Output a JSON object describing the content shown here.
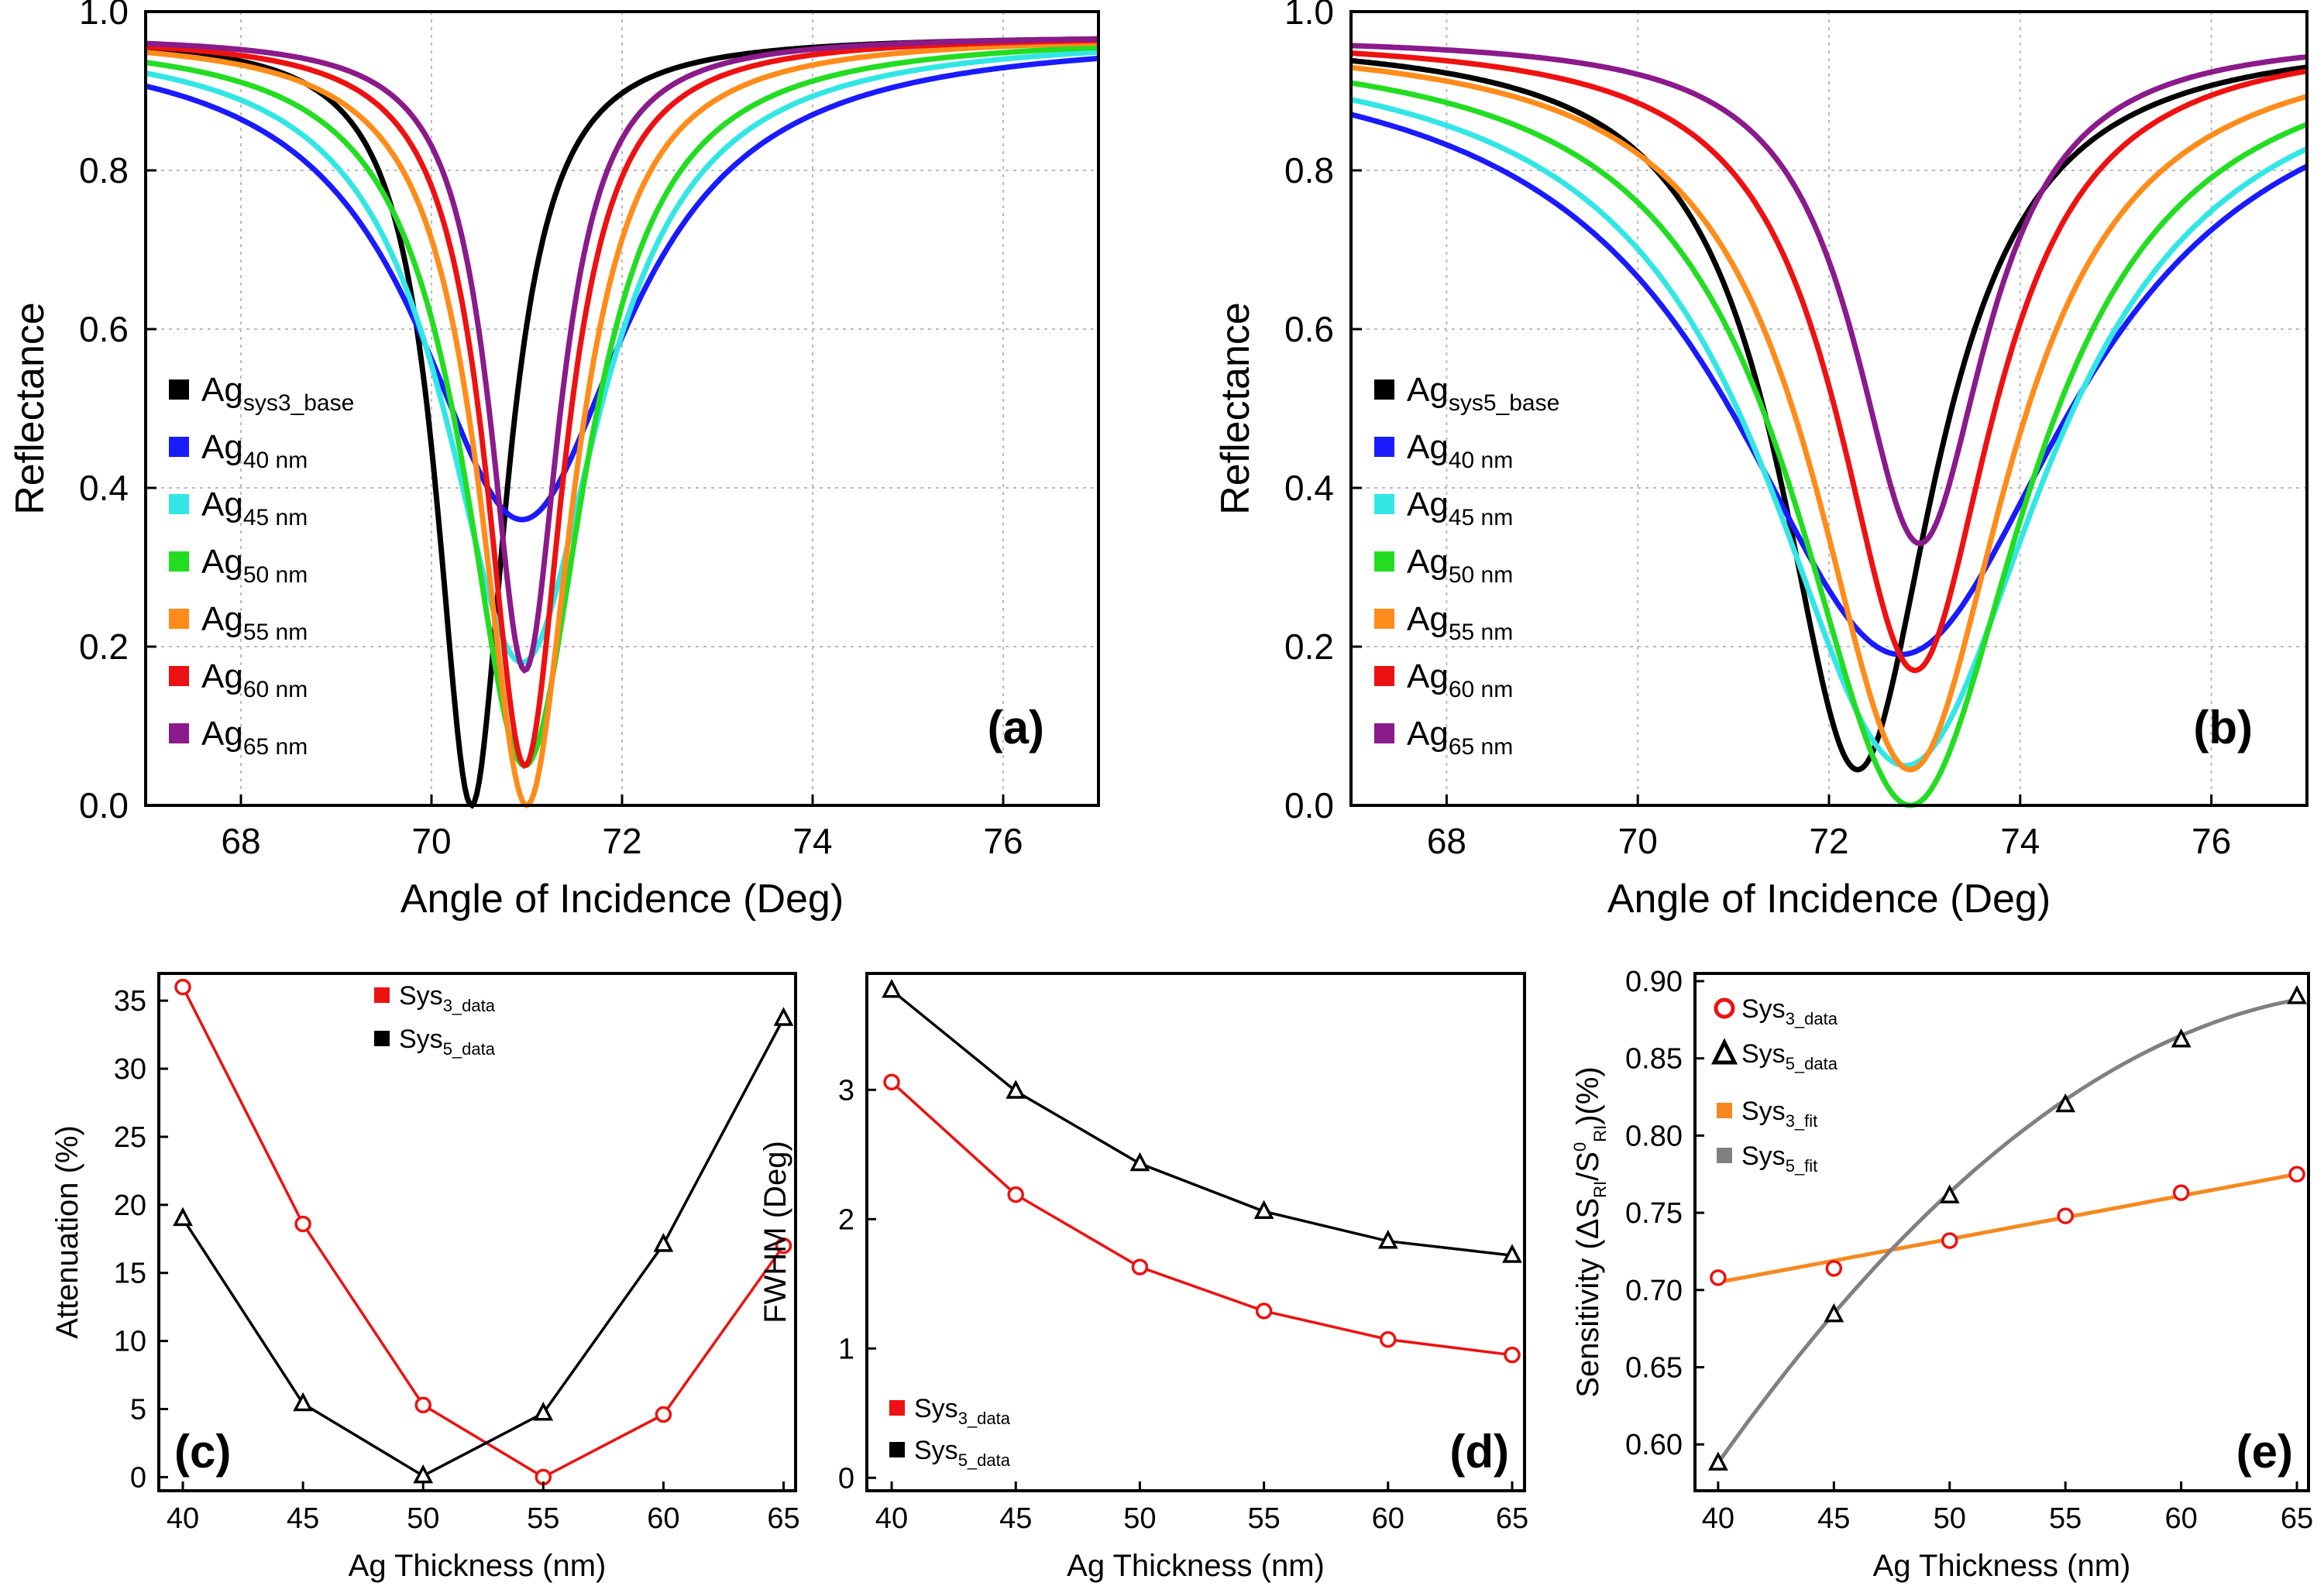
{
  "chart_data": [
    {
      "panel": "a",
      "type": "line",
      "label": "(a)",
      "xlabel": "Angle of Incidence (Deg)",
      "ylabel": "Reflectance",
      "xlim": [
        67,
        77
      ],
      "ylim": [
        0,
        1.0
      ],
      "xticks": [
        "68",
        "70",
        "72",
        "74",
        "76"
      ],
      "yticks": [
        "0.0",
        "0.2",
        "0.4",
        "0.6",
        "0.8",
        "1.0"
      ],
      "grid": true,
      "legend_position": "left-middle",
      "series": [
        {
          "name": "Ag",
          "sub": "sys3_base",
          "color": "#000000",
          "min_angle": 70.42,
          "min_R": 0.0,
          "half_width": 0.45
        },
        {
          "name": "Ag",
          "sub": "40 nm",
          "color": "#1a1aff",
          "min_angle": 70.95,
          "min_R": 0.36,
          "half_width": 1.35
        },
        {
          "name": "Ag",
          "sub": "45 nm",
          "color": "#33e6e6",
          "min_angle": 70.95,
          "min_R": 0.18,
          "half_width": 1.0
        },
        {
          "name": "Ag",
          "sub": "50 nm",
          "color": "#22dd22",
          "min_angle": 70.98,
          "min_R": 0.05,
          "half_width": 0.78
        },
        {
          "name": "Ag",
          "sub": "55 nm",
          "color": "#ff8c1a",
          "min_angle": 71.0,
          "min_R": 0.0,
          "half_width": 0.6
        },
        {
          "name": "Ag",
          "sub": "60 nm",
          "color": "#ee1111",
          "min_angle": 70.98,
          "min_R": 0.05,
          "half_width": 0.5
        },
        {
          "name": "Ag",
          "sub": "65 nm",
          "color": "#8b1a8b",
          "min_angle": 70.98,
          "min_R": 0.17,
          "half_width": 0.45
        }
      ]
    },
    {
      "panel": "b",
      "type": "line",
      "label": "(b)",
      "xlabel": "Angle of Incidence (Deg)",
      "ylabel": "Reflectance",
      "xlim": [
        67,
        77
      ],
      "ylim": [
        0,
        1.0
      ],
      "xticks": [
        "68",
        "70",
        "72",
        "74",
        "76"
      ],
      "yticks": [
        "0.0",
        "0.2",
        "0.4",
        "0.6",
        "0.8",
        "1.0"
      ],
      "grid": true,
      "legend_position": "left-middle",
      "series": [
        {
          "name": "Ag",
          "sub": "sys5_base",
          "color": "#000000",
          "min_angle": 72.3,
          "min_R": 0.045,
          "half_width": 1.0
        },
        {
          "name": "Ag",
          "sub": "40 nm",
          "color": "#1a1aff",
          "min_angle": 72.75,
          "min_R": 0.19,
          "half_width": 2.2
        },
        {
          "name": "Ag",
          "sub": "45 nm",
          "color": "#33e6e6",
          "min_angle": 72.8,
          "min_R": 0.05,
          "half_width": 1.8
        },
        {
          "name": "Ag",
          "sub": "50 nm",
          "color": "#22dd22",
          "min_angle": 72.85,
          "min_R": 0.0,
          "half_width": 1.5
        },
        {
          "name": "Ag",
          "sub": "55 nm",
          "color": "#ff8c1a",
          "min_angle": 72.85,
          "min_R": 0.045,
          "half_width": 1.25
        },
        {
          "name": "Ag",
          "sub": "60 nm",
          "color": "#ee1111",
          "min_angle": 72.9,
          "min_R": 0.17,
          "half_width": 1.0
        },
        {
          "name": "Ag",
          "sub": "65 nm",
          "color": "#8b1a8b",
          "min_angle": 72.95,
          "min_R": 0.33,
          "half_width": 0.85
        }
      ]
    },
    {
      "panel": "c",
      "type": "line",
      "label": "(c)",
      "xlabel": "Ag Thickness (nm)",
      "ylabel": "Attenuation (%)",
      "x": [
        40,
        45,
        50,
        55,
        60,
        65
      ],
      "xlim": [
        39,
        65.5
      ],
      "ylim": [
        -1,
        37
      ],
      "xticks": [
        "40",
        "45",
        "50",
        "55",
        "60",
        "65"
      ],
      "yticks": [
        "0",
        "5",
        "10",
        "15",
        "20",
        "25",
        "30",
        "35"
      ],
      "legend_position": "top-center",
      "series": [
        {
          "name": "Sys",
          "sub": "3_data",
          "color": "#ee1111",
          "marker": "circle",
          "values": [
            36.0,
            18.6,
            5.3,
            0.0,
            4.6,
            17.0
          ]
        },
        {
          "name": "Sys",
          "sub": "5_data",
          "color": "#000000",
          "marker": "triangle",
          "values": [
            19.0,
            5.4,
            0.1,
            4.7,
            17.1,
            33.7
          ]
        }
      ]
    },
    {
      "panel": "d",
      "type": "line",
      "label": "(d)",
      "xlabel": "Ag Thickness (nm)",
      "ylabel": "FWHM (Deg)",
      "x": [
        40,
        45,
        50,
        55,
        60,
        65
      ],
      "xlim": [
        39,
        65.5
      ],
      "ylim": [
        -0.1,
        3.9
      ],
      "xticks": [
        "40",
        "45",
        "50",
        "55",
        "60",
        "65"
      ],
      "yticks": [
        "0",
        "1",
        "2",
        "3"
      ],
      "legend_position": "bottom-left",
      "series": [
        {
          "name": "Sys",
          "sub": "3_data",
          "color": "#ee1111",
          "marker": "circle",
          "values": [
            3.06,
            2.19,
            1.63,
            1.29,
            1.07,
            0.95
          ]
        },
        {
          "name": "Sys",
          "sub": "5_data",
          "color": "#000000",
          "marker": "triangle",
          "values": [
            3.77,
            2.99,
            2.43,
            2.06,
            1.83,
            1.72
          ]
        }
      ]
    },
    {
      "panel": "e",
      "type": "scatter",
      "label": "(e)",
      "xlabel": "Ag Thickness (nm)",
      "ylabel": "Sensitivity (ΔS",
      "ylabel_sub1": "RI",
      "ylabel_mid": "/S",
      "ylabel_sup": "0",
      "ylabel_sub2": "RI",
      "ylabel_end": ")(%)",
      "x": [
        40,
        45,
        50,
        55,
        60,
        65
      ],
      "xlim": [
        39,
        65.5
      ],
      "ylim": [
        0.57,
        0.905
      ],
      "xticks": [
        "40",
        "45",
        "50",
        "55",
        "60",
        "65"
      ],
      "yticks": [
        "0.60",
        "0.65",
        "0.70",
        "0.75",
        "0.80",
        "0.85",
        "0.90"
      ],
      "legend_position": "top-left",
      "series": [
        {
          "name": "Sys",
          "sub": "3_data",
          "color": "#ee1111",
          "marker": "circle",
          "values": [
            0.708,
            0.714,
            0.732,
            0.748,
            0.763,
            0.775
          ]
        },
        {
          "name": "Sys",
          "sub": "5_data",
          "color": "#000000",
          "marker": "triangle",
          "values": [
            0.588,
            0.684,
            0.761,
            0.82,
            0.862,
            0.89
          ]
        }
      ],
      "fits": [
        {
          "name": "Sys",
          "sub": "3_fit",
          "color": "#f5891f",
          "kind": "linear",
          "y0": 0.705,
          "y1": 0.775
        },
        {
          "name": "Sys",
          "sub": "5_fit",
          "color": "#808080",
          "kind": "quadratic",
          "coef": [
            0.588,
            0.0212,
            -0.000368
          ]
        }
      ]
    }
  ]
}
